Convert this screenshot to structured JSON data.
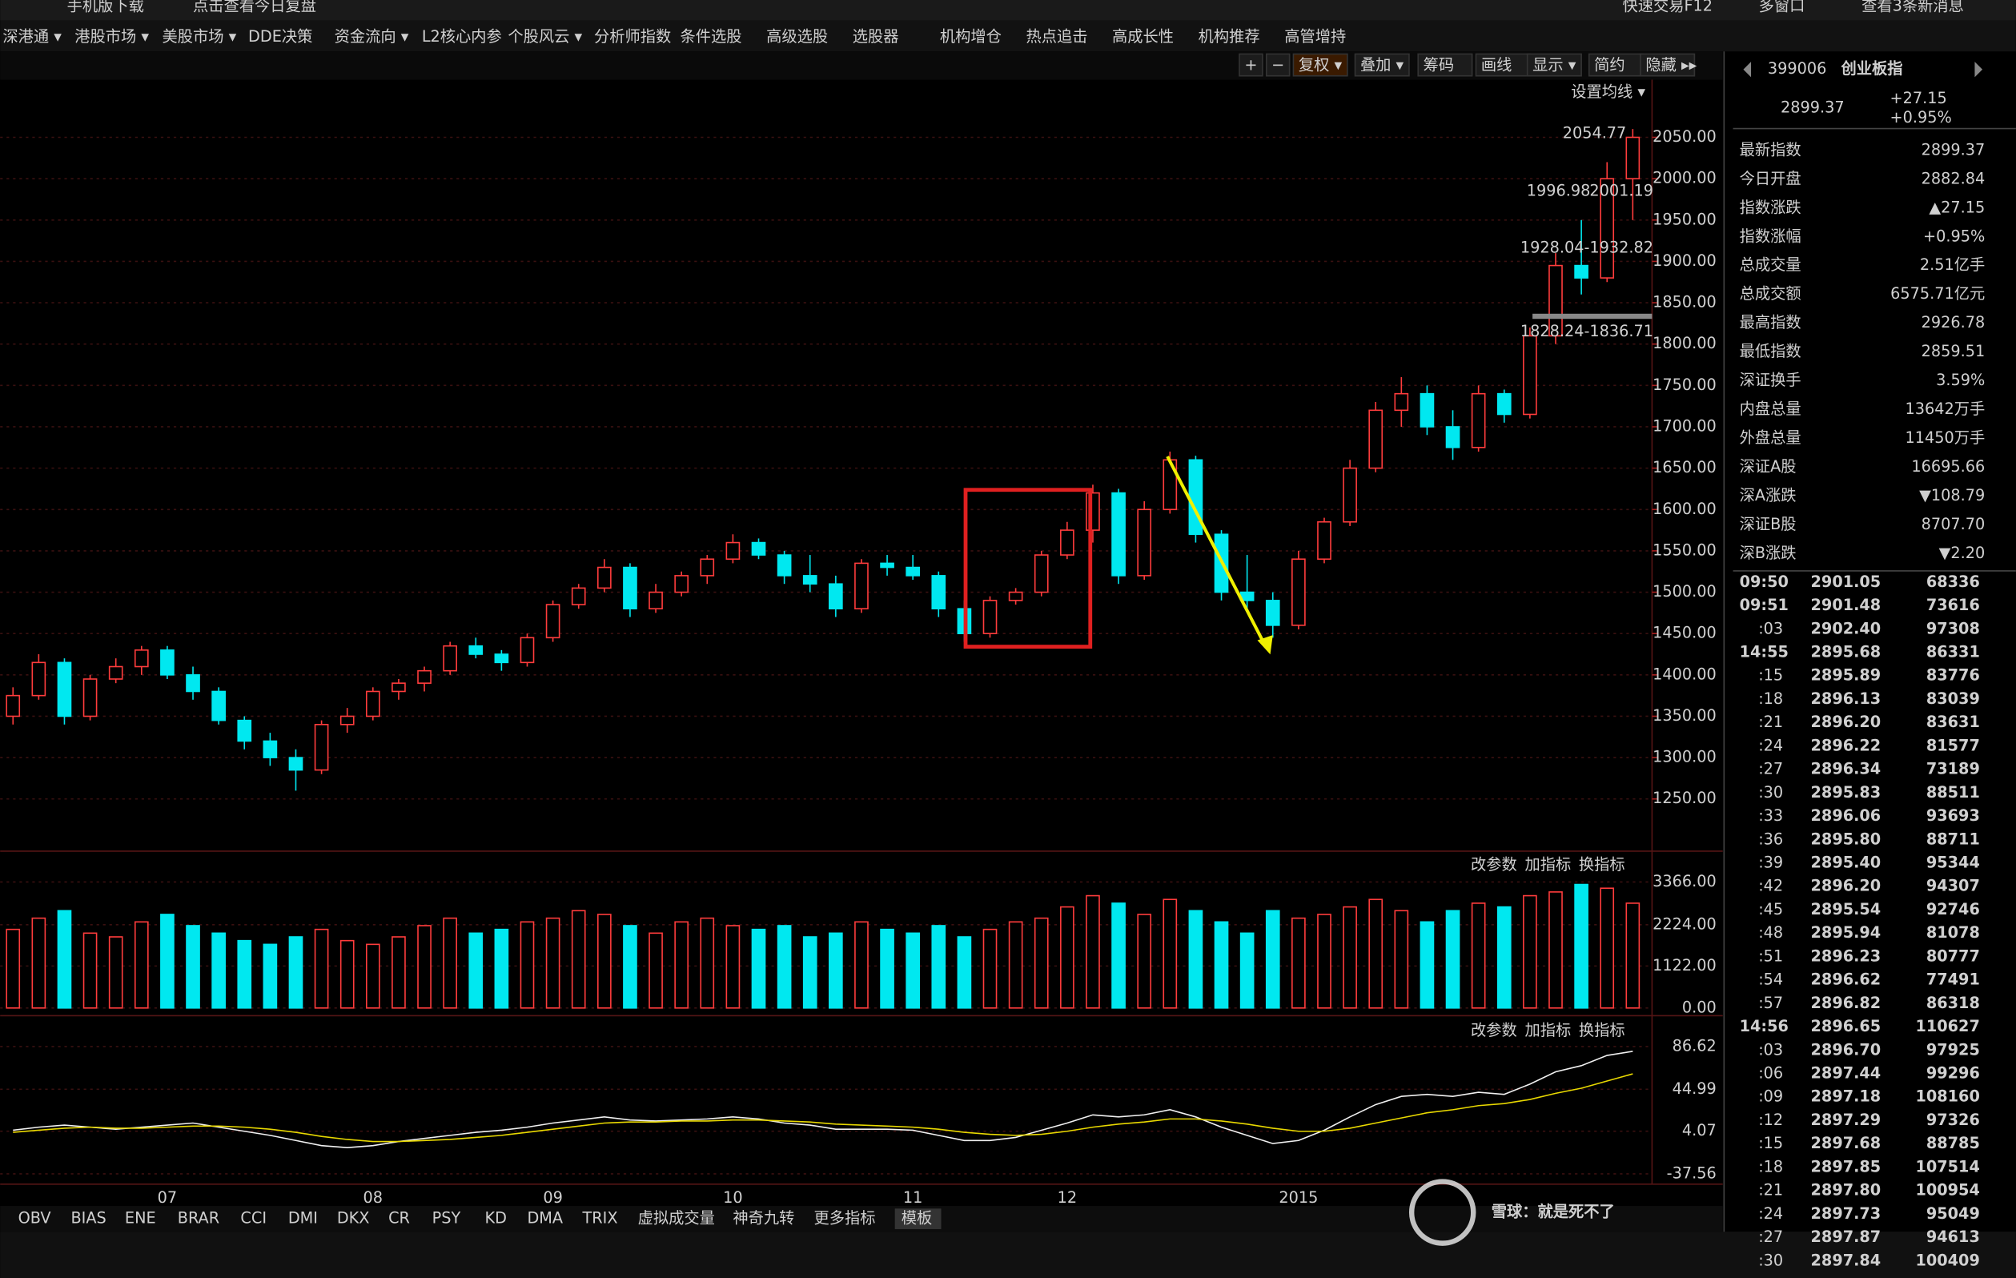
{
  "top_bar": [
    "手机版下载",
    "点击查看今日复盘",
    "快速交易F12",
    "多窗口",
    "查看3条新消息"
  ],
  "menu": [
    "深港通 ▾",
    "港股市场 ▾",
    "美股市场 ▾",
    "DDE决策",
    "资金流向 ▾",
    "L2核心内参",
    "个股风云 ▾",
    "分析师指数",
    "条件选股",
    "高级选股",
    "选股器",
    "机构增仓",
    "热点追击",
    "高成长性",
    "机构推荐",
    "高管增持"
  ],
  "toolbar": [
    "+",
    "−",
    "复权 ▾",
    "叠加 ▾",
    "筹码",
    "画线",
    "显示 ▾",
    "简约",
    "隐藏 ▸▸"
  ],
  "chart_data": {
    "type": "candlestick",
    "ma_setting": "设置均线 ▾",
    "annotations": [
      "2054.77",
      "1996.98",
      "2001.19",
      "1928.04-1932.82",
      "1828.24-1836.71"
    ],
    "categories": [
      null,
      null,
      null,
      null,
      null,
      null,
      "07",
      null,
      null,
      null,
      null,
      null,
      null,
      null,
      "08",
      null,
      null,
      null,
      null,
      null,
      null,
      "09",
      null,
      null,
      null,
      null,
      null,
      null,
      "10",
      null,
      null,
      null,
      null,
      null,
      null,
      "11",
      null,
      null,
      null,
      null,
      null,
      "12",
      null,
      null,
      null,
      null,
      null,
      null,
      null,
      null,
      "2015",
      null,
      null,
      null,
      null,
      null,
      null,
      null,
      null,
      null,
      null,
      null,
      null,
      null
    ],
    "open": [
      1350,
      1375,
      1415,
      1350,
      1395,
      1410,
      1430,
      1400,
      1380,
      1345,
      1320,
      1300,
      1285,
      1340,
      1350,
      1380,
      1390,
      1405,
      1435,
      1425,
      1415,
      1445,
      1485,
      1505,
      1530,
      1480,
      1500,
      1520,
      1540,
      1560,
      1545,
      1520,
      1510,
      1480,
      1535,
      1530,
      1520,
      1480,
      1450,
      1490,
      1500,
      1545,
      1575,
      1620,
      1520,
      1600,
      1660,
      1570,
      1500,
      1490,
      1460,
      1540,
      1585,
      1650,
      1720,
      1740,
      1700,
      1675,
      1740,
      1715,
      1810,
      1895,
      1880,
      2000
    ],
    "high": [
      1385,
      1425,
      1420,
      1400,
      1420,
      1435,
      1435,
      1410,
      1385,
      1350,
      1330,
      1310,
      1345,
      1360,
      1385,
      1395,
      1410,
      1440,
      1445,
      1430,
      1450,
      1490,
      1510,
      1540,
      1535,
      1510,
      1525,
      1545,
      1570,
      1565,
      1550,
      1545,
      1520,
      1540,
      1545,
      1545,
      1525,
      1490,
      1495,
      1505,
      1550,
      1585,
      1630,
      1625,
      1610,
      1670,
      1665,
      1575,
      1545,
      1500,
      1550,
      1590,
      1660,
      1730,
      1760,
      1750,
      1720,
      1750,
      1745,
      1820,
      1910,
      1950,
      2020,
      2060
    ],
    "low": [
      1340,
      1370,
      1340,
      1345,
      1390,
      1400,
      1395,
      1370,
      1340,
      1310,
      1290,
      1260,
      1280,
      1330,
      1345,
      1370,
      1380,
      1400,
      1420,
      1405,
      1410,
      1440,
      1480,
      1500,
      1470,
      1475,
      1495,
      1510,
      1535,
      1540,
      1510,
      1500,
      1470,
      1475,
      1520,
      1515,
      1470,
      1440,
      1445,
      1485,
      1495,
      1540,
      1560,
      1510,
      1515,
      1595,
      1560,
      1490,
      1480,
      1445,
      1455,
      1535,
      1580,
      1645,
      1700,
      1690,
      1660,
      1670,
      1705,
      1710,
      1800,
      1860,
      1875,
      1950
    ],
    "close": [
      1375,
      1415,
      1350,
      1395,
      1410,
      1430,
      1400,
      1380,
      1345,
      1320,
      1300,
      1285,
      1340,
      1350,
      1380,
      1390,
      1405,
      1435,
      1425,
      1415,
      1445,
      1485,
      1505,
      1530,
      1480,
      1500,
      1520,
      1540,
      1560,
      1545,
      1520,
      1510,
      1480,
      1535,
      1530,
      1520,
      1480,
      1450,
      1490,
      1500,
      1545,
      1575,
      1620,
      1520,
      1600,
      1660,
      1570,
      1500,
      1490,
      1460,
      1540,
      1585,
      1650,
      1720,
      1740,
      1700,
      1675,
      1740,
      1715,
      1810,
      1895,
      1880,
      2000,
      2050
    ],
    "up_color": "#ff3c3c",
    "down_color": "#00e8f0",
    "ylim": [
      1190,
      2115
    ],
    "yticks": [
      {
        "value": 1250,
        "label": "1250.00"
      },
      {
        "value": 1300,
        "label": "1300.00"
      },
      {
        "value": 1350,
        "label": "1350.00"
      },
      {
        "value": 1400,
        "label": "1400.00"
      },
      {
        "value": 1450,
        "label": "1450.00"
      },
      {
        "value": 1500,
        "label": "1500.00"
      },
      {
        "value": 1550,
        "label": "1550.00"
      },
      {
        "value": 1600,
        "label": "1600.00"
      },
      {
        "value": 1650,
        "label": "1650.00"
      },
      {
        "value": 1700,
        "label": "1700.00"
      },
      {
        "value": 1750,
        "label": "1750.00"
      },
      {
        "value": 1800,
        "label": "1800.00"
      },
      {
        "value": 1850,
        "label": "1850.00"
      },
      {
        "value": 1900,
        "label": "1900.00"
      },
      {
        "value": 1950,
        "label": "1950.00"
      },
      {
        "value": 2000,
        "label": "2000.00"
      },
      {
        "value": 2050,
        "label": "2050.00"
      }
    ],
    "volume": {
      "pane_buttons": [
        "改参数",
        "加指标",
        "换指标"
      ],
      "values": [
        2100,
        2400,
        2600,
        2000,
        1900,
        2300,
        2500,
        2200,
        2000,
        1800,
        1700,
        1900,
        2100,
        1800,
        1700,
        1900,
        2200,
        2400,
        2000,
        2100,
        2300,
        2400,
        2600,
        2500,
        2200,
        2000,
        2300,
        2400,
        2200,
        2100,
        2200,
        1900,
        2000,
        2300,
        2100,
        2000,
        2200,
        1900,
        2100,
        2300,
        2400,
        2700,
        3000,
        2800,
        2500,
        2900,
        2600,
        2300,
        2000,
        2600,
        2400,
        2500,
        2700,
        2900,
        2600,
        2300,
        2600,
        2800,
        2700,
        3000,
        3100,
        3300,
        3200,
        2800
      ],
      "ylim": [
        0,
        3366
      ],
      "yticks": [
        {
          "value": 0,
          "label": "0.00"
        },
        {
          "value": 1122,
          "label": "1122.00"
        },
        {
          "value": 2224,
          "label": "2224.00"
        },
        {
          "value": 3366,
          "label": "3366.00"
        }
      ]
    },
    "macd": {
      "pane_buttons": [
        "改参数",
        "加指标",
        "换指标"
      ],
      "dif": [
        5,
        8,
        10,
        8,
        6,
        8,
        10,
        12,
        8,
        4,
        0,
        -5,
        -10,
        -12,
        -10,
        -6,
        -3,
        0,
        3,
        5,
        8,
        12,
        15,
        18,
        15,
        14,
        15,
        16,
        18,
        16,
        12,
        10,
        6,
        6,
        6,
        5,
        0,
        -5,
        -5,
        -2,
        5,
        12,
        20,
        18,
        20,
        25,
        18,
        8,
        0,
        -8,
        -5,
        5,
        18,
        30,
        38,
        40,
        38,
        42,
        40,
        50,
        62,
        68,
        78,
        82
      ],
      "dea": [
        3,
        5,
        7,
        8,
        7,
        7,
        8,
        9,
        9,
        8,
        6,
        3,
        -1,
        -4,
        -6,
        -6,
        -5,
        -4,
        -2,
        0,
        3,
        6,
        9,
        12,
        13,
        13,
        14,
        14,
        15,
        15,
        14,
        13,
        11,
        10,
        9,
        8,
        6,
        3,
        1,
        0,
        1,
        4,
        8,
        11,
        13,
        16,
        16,
        14,
        11,
        7,
        4,
        4,
        7,
        12,
        17,
        22,
        25,
        29,
        31,
        35,
        41,
        46,
        53,
        60
      ],
      "dif_color": "#f0f0f0",
      "dea_color": "#e8d800",
      "ylim": [
        -37.56,
        86.62
      ],
      "yticks": [
        {
          "value": -37.56,
          "label": "-37.56"
        },
        {
          "value": 4.07,
          "label": "4.07"
        },
        {
          "value": 44.99,
          "label": "44.99"
        },
        {
          "value": 86.62,
          "label": "86.62"
        }
      ]
    }
  },
  "quote": {
    "code": "399006",
    "name": "创业板指",
    "price": "2899.37",
    "change": "+27.15",
    "change_pct": "+0.95%",
    "rows": [
      {
        "label": "最新指数",
        "value": "2899.37",
        "color": "#ff4040"
      },
      {
        "label": "今日开盘",
        "value": "2882.84",
        "color": "#ff4040"
      },
      {
        "label": "指数涨跌",
        "value": "▲27.15",
        "color": "#ff4040"
      },
      {
        "label": "指数涨幅",
        "value": "+0.95%",
        "color": "#ff4040"
      },
      {
        "label": "总成交量",
        "value": "2.51亿手",
        "color": "#ffffff"
      },
      {
        "label": "总成交额",
        "value": "6575.71亿元",
        "color": "#00e8f0"
      },
      {
        "label": "最高指数",
        "value": "2926.78",
        "color": "#ff4040"
      },
      {
        "label": "最低指数",
        "value": "2859.51",
        "color": "#ff4040"
      },
      {
        "label": "深证换手",
        "value": "3.59%",
        "color": "#ffffff"
      },
      {
        "label": "内盘总量",
        "value": "13642万手",
        "color": "#2ee62e"
      },
      {
        "label": "外盘总量",
        "value": "11450万手",
        "color": "#ff4040"
      },
      {
        "label": "深证A股",
        "value": "16695.66",
        "color": "#2ee62e"
      },
      {
        "label": "深A涨跌",
        "value": "▼108.79",
        "color": "#2ee62e"
      },
      {
        "label": "深证B股",
        "value": "8707.70",
        "color": "#2ee62e"
      },
      {
        "label": "深B涨跌",
        "value": "▼2.20",
        "color": "#2ee62e"
      }
    ]
  },
  "ticks": [
    {
      "time": "09:50",
      "price": "2901.05",
      "volume": "68336"
    },
    {
      "time": "09:51",
      "price": "2901.48",
      "volume": "73616"
    },
    {
      "time": ":03",
      "price": "2902.40",
      "volume": "97308"
    },
    {
      "time": "14:55",
      "price": "2895.68",
      "volume": "86331"
    },
    {
      "time": ":15",
      "price": "2895.89",
      "volume": "83776"
    },
    {
      "time": ":18",
      "price": "2896.13",
      "volume": "83039"
    },
    {
      "time": ":21",
      "price": "2896.20",
      "volume": "83631"
    },
    {
      "time": ":24",
      "price": "2896.22",
      "volume": "81577"
    },
    {
      "time": ":27",
      "price": "2896.34",
      "volume": "73189"
    },
    {
      "time": ":30",
      "price": "2895.83",
      "volume": "88511"
    },
    {
      "time": ":33",
      "price": "2896.06",
      "volume": "93693"
    },
    {
      "time": ":36",
      "price": "2895.80",
      "volume": "88711"
    },
    {
      "time": ":39",
      "price": "2895.40",
      "volume": "95344"
    },
    {
      "time": ":42",
      "price": "2896.20",
      "volume": "94307"
    },
    {
      "time": ":45",
      "price": "2895.54",
      "volume": "92746"
    },
    {
      "time": ":48",
      "price": "2895.94",
      "volume": "81078"
    },
    {
      "time": ":51",
      "price": "2896.23",
      "volume": "80777"
    },
    {
      "time": ":54",
      "price": "2896.62",
      "volume": "77491"
    },
    {
      "time": ":57",
      "price": "2896.82",
      "volume": "86318"
    },
    {
      "time": "14:56",
      "price": "2896.65",
      "volume": "110627"
    },
    {
      "time": ":03",
      "price": "2896.70",
      "volume": "97925"
    },
    {
      "time": ":06",
      "price": "2897.44",
      "volume": "99296"
    },
    {
      "time": ":09",
      "price": "2897.18",
      "volume": "108160"
    },
    {
      "time": ":12",
      "price": "2897.29",
      "volume": "97326"
    },
    {
      "time": ":15",
      "price": "2897.68",
      "volume": "88785"
    },
    {
      "time": ":18",
      "price": "2897.85",
      "volume": "107514"
    },
    {
      "time": ":21",
      "price": "2897.80",
      "volume": "100954"
    },
    {
      "time": ":24",
      "price": "2897.73",
      "volume": "95049"
    },
    {
      "time": ":27",
      "price": "2897.87",
      "volume": "94613"
    },
    {
      "time": ":30",
      "price": "2897.84",
      "volume": "100409"
    }
  ],
  "indicator_tabs": [
    "OBV",
    "BIAS",
    "ENE",
    "BRAR",
    "CCI",
    "DMI",
    "DKX",
    "CR",
    "PSY",
    "KD",
    "DMA",
    "TRIX",
    "虚拟成交量",
    "神奇九转",
    "更多指标",
    "模板"
  ],
  "watermark": "雪球：就是死不了"
}
